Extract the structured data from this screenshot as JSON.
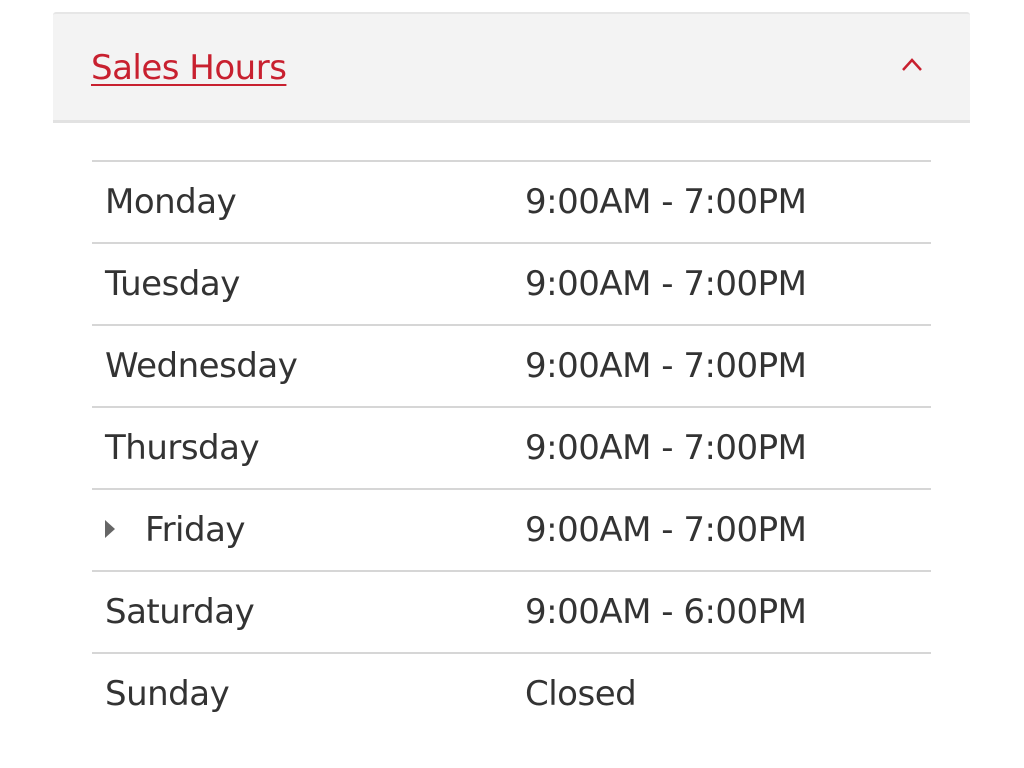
{
  "header": {
    "title": "Sales Hours",
    "expanded": true,
    "accent_color": "#c8202f",
    "toggle_icon": "chevron-up-icon"
  },
  "rows": [
    {
      "day": "Monday",
      "hours": "9:00AM - 7:00PM"
    },
    {
      "day": "Tuesday",
      "hours": "9:00AM - 7:00PM"
    },
    {
      "day": "Wednesday",
      "hours": "9:00AM - 7:00PM"
    },
    {
      "day": "Thursday",
      "hours": "9:00AM - 7:00PM"
    },
    {
      "day": "Friday",
      "hours": "9:00AM - 7:00PM",
      "current": true,
      "marker_icon": "triangle-right-icon"
    },
    {
      "day": "Saturday",
      "hours": "9:00AM - 6:00PM"
    },
    {
      "day": "Sunday",
      "hours": "Closed"
    }
  ]
}
